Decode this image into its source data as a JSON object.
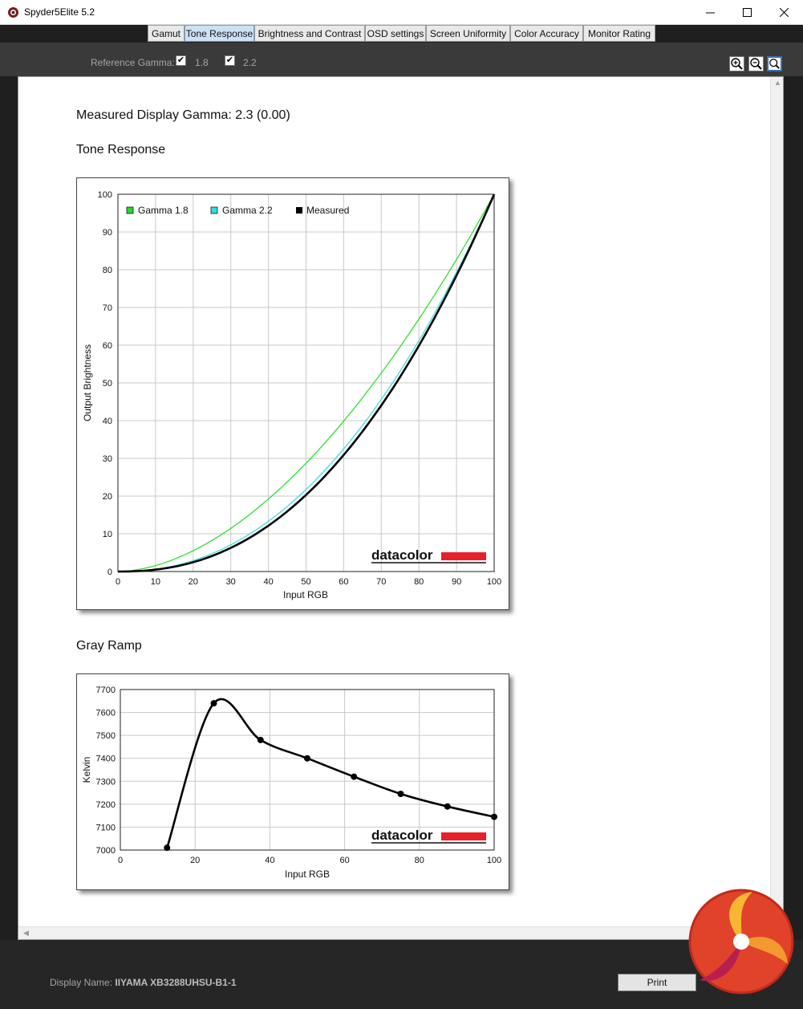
{
  "window": {
    "title": "Spyder5Elite 5.2"
  },
  "tabs": [
    {
      "label": "Gamut",
      "active": false
    },
    {
      "label": "Tone Response",
      "active": true
    },
    {
      "label": "Brightness and Contrast",
      "active": false
    },
    {
      "label": "OSD settings",
      "active": false
    },
    {
      "label": "Screen Uniformity",
      "active": false
    },
    {
      "label": "Color Accuracy",
      "active": false
    },
    {
      "label": "Monitor Rating",
      "active": false
    }
  ],
  "reference": {
    "label": "Reference Gamma:",
    "options": [
      {
        "value": "1.8",
        "checked": true
      },
      {
        "value": "2.2",
        "checked": true
      }
    ]
  },
  "zoom_buttons": [
    "zoom-in-icon",
    "zoom-out-icon",
    "zoom-fit-icon"
  ],
  "measured_gamma": "Measured Display Gamma: 2.3 (0.00)",
  "tone_section_title": "Tone Response",
  "gray_section_title": "Gray Ramp",
  "watermark": "datacolor",
  "footer": {
    "display_label": "Display Name:",
    "display_value": "IIYAMA XB3288UHSU-B1-1",
    "print_label": "Print"
  },
  "colors": {
    "gamma18": "#22dd22",
    "gamma22": "#33dddd",
    "measured": "#000000",
    "brand_red": "#e8202a",
    "active_tab": "#cde1f4"
  },
  "chart_data": [
    {
      "type": "line",
      "xlabel": "Input RGB",
      "ylabel": "Output Brightness",
      "xlim": [
        0,
        100
      ],
      "ylim": [
        0,
        100
      ],
      "xticks": [
        0,
        10,
        20,
        30,
        40,
        50,
        60,
        70,
        80,
        90,
        100
      ],
      "yticks": [
        0,
        10,
        20,
        30,
        40,
        50,
        60,
        70,
        80,
        90,
        100
      ],
      "grid": true,
      "legend": "top-left",
      "series": [
        {
          "name": "Gamma 1.8",
          "color": "#22dd22",
          "gamma": 1.8
        },
        {
          "name": "Gamma 2.2",
          "color": "#33dddd",
          "gamma": 2.2
        },
        {
          "name": "Measured",
          "color": "#000000",
          "gamma": 2.3
        }
      ]
    },
    {
      "type": "line",
      "xlabel": "Input RGB",
      "ylabel": "Kelvin",
      "xlim": [
        0,
        100
      ],
      "ylim": [
        7000,
        7700
      ],
      "xticks": [
        0,
        20,
        40,
        60,
        80,
        100
      ],
      "yticks": [
        7000,
        7100,
        7200,
        7300,
        7400,
        7500,
        7600,
        7700
      ],
      "grid": true,
      "points": [
        {
          "x": 12.5,
          "y": 7010
        },
        {
          "x": 25,
          "y": 7640
        },
        {
          "x": 37.5,
          "y": 7480
        },
        {
          "x": 50,
          "y": 7400
        },
        {
          "x": 62.5,
          "y": 7320
        },
        {
          "x": 75,
          "y": 7245
        },
        {
          "x": 87.5,
          "y": 7190
        },
        {
          "x": 100,
          "y": 7145
        }
      ]
    }
  ]
}
